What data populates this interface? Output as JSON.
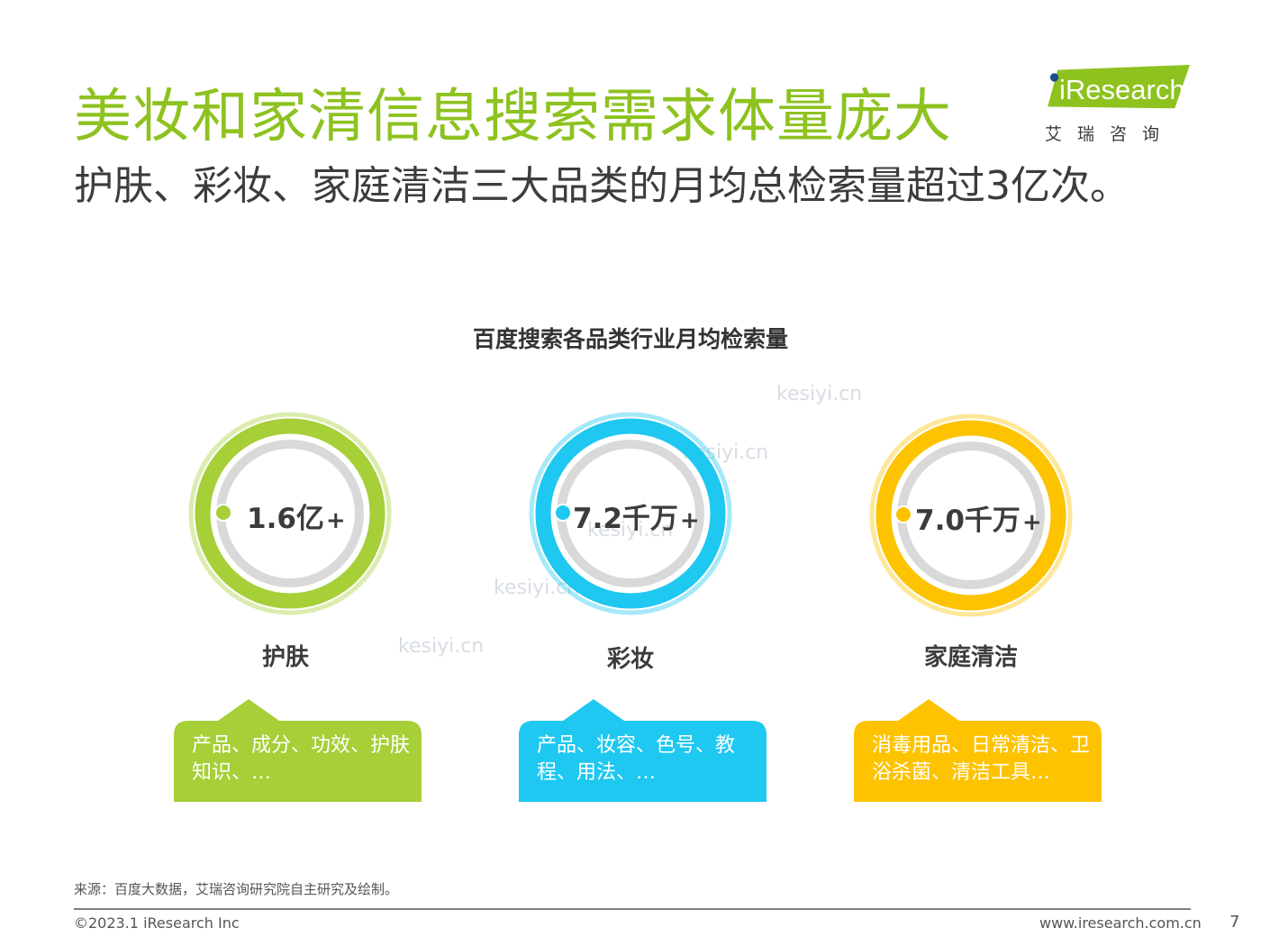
{
  "title": "美妆和家清信息搜索需求体量庞大",
  "subtitle": "护肤、彩妆、家庭清洁三大品类的月均总检索量超过3亿次。",
  "logo": {
    "text": "iResearch",
    "cn": "艾瑞咨询"
  },
  "colors": {
    "title_green": "#8dc21f",
    "skin_green": "#a6cf38",
    "makeup_blue": "#1ec8f0",
    "home_yellow": "#fdc300"
  },
  "chart_data": {
    "type": "table",
    "title": "百度搜索各品类行业月均检索量",
    "categories": [
      "护肤",
      "彩妆",
      "家庭清洁"
    ],
    "values_text": [
      "1.6亿",
      "7.2千万",
      "7.0千万"
    ],
    "values": [
      160000000,
      72000000,
      70000000
    ],
    "suffix": "+",
    "notes": [
      "产品、成分、功效、护肤知识、…",
      "产品、妆容、色号、教程、用法、…",
      "消毒用品、日常清洁、卫浴杀菌、清洁工具…"
    ]
  },
  "watermark": "kesiyi.cn",
  "footer": {
    "source": "来源：百度大数据，艾瑞咨询研究院自主研究及绘制。",
    "copyright": "©2023.1 iResearch Inc",
    "website": "www.iresearch.com.cn",
    "page": "7"
  }
}
